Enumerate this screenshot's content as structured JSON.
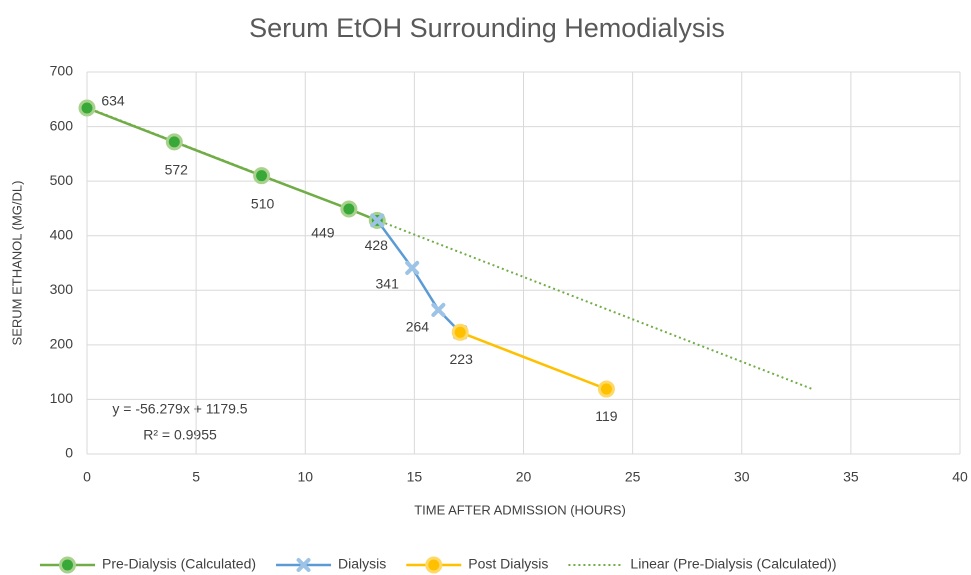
{
  "chart_data": {
    "type": "line",
    "title": "Serum EtOH Surrounding Hemodialysis",
    "x_label": "TIME AFTER ADMISSION (HOURS)",
    "y_label": "SERUM ETHANOL (MG/DL)",
    "xlim": [
      0,
      40
    ],
    "xticks": [
      0,
      5,
      10,
      15,
      20,
      25,
      30,
      35,
      40
    ],
    "ylim": [
      0,
      700
    ],
    "yticks": [
      0,
      100,
      200,
      300,
      400,
      500,
      600,
      700
    ],
    "grid": true,
    "legend": "bottom",
    "series": [
      {
        "name": "Pre-Dialysis (Calculated)",
        "color": "#70ad47",
        "marker": "circle",
        "x": [
          0,
          4,
          8,
          12,
          13.3
        ],
        "values": [
          634,
          572,
          510,
          449,
          428
        ]
      },
      {
        "name": "Dialysis",
        "color": "#5b9bd5",
        "marker": "x",
        "x": [
          13.3,
          14.9,
          16.1,
          17.1
        ],
        "values": [
          428,
          341,
          264,
          223
        ]
      },
      {
        "name": "Post Dialysis",
        "color": "#ffc000",
        "marker": "circle",
        "x": [
          17.1,
          23.8
        ],
        "values": [
          223,
          119
        ]
      },
      {
        "name": "Linear (Pre-Dialysis (Calculated))",
        "color": "#70ad47",
        "marker": "none",
        "dashed": true,
        "x": [
          0,
          33.3
        ],
        "values": [
          635,
          118
        ]
      }
    ],
    "annotations": [
      "y = -56.279x + 1179.5",
      "R² = 0.9955"
    ]
  }
}
